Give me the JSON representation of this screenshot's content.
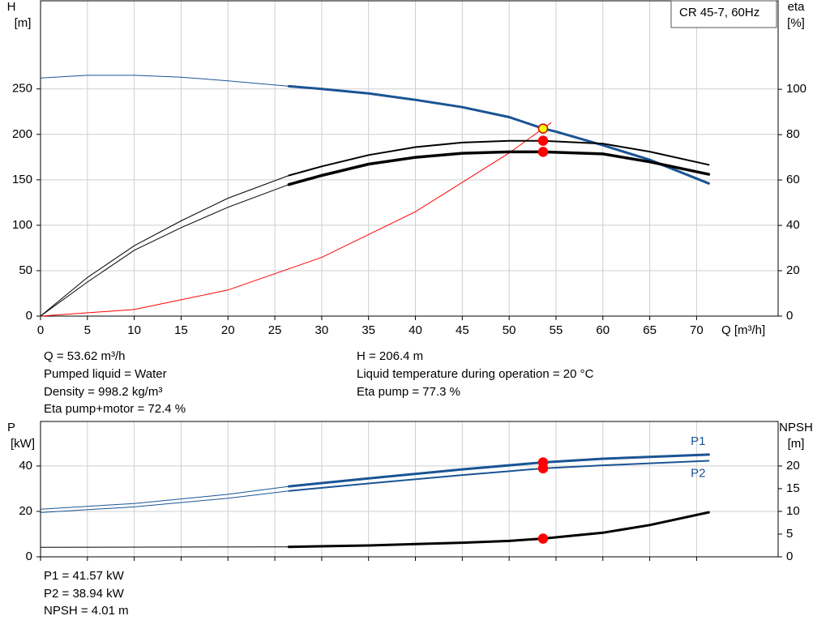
{
  "chart_data": [
    {
      "type": "line",
      "annotation": "CR 45-7, 60Hz",
      "x_label": "Q [m³/h]",
      "y_label": [
        "H",
        "[m]"
      ],
      "y2_label": [
        "eta",
        "[%]"
      ],
      "xlim": [
        0,
        78.7
      ],
      "xticks": [
        0,
        5,
        10,
        15,
        20,
        25,
        30,
        35,
        40,
        45,
        50,
        55,
        60,
        65,
        70
      ],
      "show_xtick_labels": true,
      "ylim": [
        0,
        347
      ],
      "yticks": [
        0,
        50,
        100,
        150,
        200,
        250
      ],
      "y2lim": [
        0,
        139
      ],
      "y2ticks": [
        0,
        20,
        40,
        60,
        80,
        100
      ],
      "grid": true,
      "thick_from": 26.5,
      "series": [
        {
          "color": "#1a5494",
          "line_width": 3,
          "x": [
            0,
            5,
            10,
            15,
            20,
            26.5,
            30,
            35,
            40,
            45,
            50,
            53.62,
            55,
            60,
            65,
            71.3
          ],
          "values": [
            262,
            265,
            265,
            263,
            259,
            253,
            250,
            245,
            238,
            230,
            219,
            206.4,
            203,
            188,
            172,
            146
          ]
        },
        {
          "color": "#ff0000",
          "style": "thin",
          "x": [
            0,
            10,
            20,
            30,
            40,
            50,
            54.5
          ],
          "values": [
            0,
            7.2,
            28.7,
            64.6,
            114.9,
            179.5,
            213
          ]
        },
        {
          "color": "#000000",
          "line_width": 2,
          "axis": "y2",
          "x": [
            0,
            5,
            10,
            15,
            20,
            26.5,
            30,
            35,
            40,
            45,
            50,
            53.62,
            60,
            65,
            71.3
          ],
          "values": [
            0,
            17,
            31,
            42,
            52,
            62,
            66,
            71,
            74.5,
            76.5,
            77.3,
            77.3,
            76,
            72.5,
            66.7
          ]
        },
        {
          "color": "#000000",
          "line_width": 3.5,
          "axis": "y2",
          "x": [
            0,
            5,
            10,
            15,
            20,
            26.5,
            30,
            35,
            40,
            45,
            50,
            53.62,
            60,
            65,
            71.3
          ],
          "values": [
            0,
            15,
            29,
            39,
            48,
            58,
            62,
            67,
            70,
            71.8,
            72.4,
            72.4,
            71.5,
            68,
            62.5
          ]
        }
      ],
      "points": [
        {
          "x": 53.62,
          "y": 77.3,
          "axis": "y2",
          "color": "#ff0000"
        },
        {
          "x": 53.62,
          "y": 72.4,
          "axis": "y2",
          "color": "#ff0000"
        },
        {
          "x": 53.62,
          "y": 206.4,
          "color": "#ffff00"
        }
      ]
    },
    {
      "type": "line",
      "y_label": [
        "P",
        "[kW]"
      ],
      "y2_label": [
        "NPSH",
        "[m]"
      ],
      "xlim": [
        0,
        78.7
      ],
      "xticks": [
        0,
        5,
        10,
        15,
        20,
        25,
        30,
        35,
        40,
        45,
        50,
        55,
        60,
        65,
        70
      ],
      "show_xtick_labels": false,
      "ylim": [
        0,
        59.6
      ],
      "yticks": [
        0,
        20,
        40
      ],
      "y2lim": [
        0,
        29.8
      ],
      "y2ticks": [
        0,
        5,
        10,
        15,
        20
      ],
      "grid": true,
      "thick_from": 26.5,
      "series": [
        {
          "name": "P1",
          "color": "#1a5494",
          "line_width": 3,
          "x": [
            0,
            10,
            20,
            26.5,
            35,
            45,
            53.62,
            60,
            71.3
          ],
          "values": [
            21,
            23.5,
            27.5,
            31,
            34.5,
            38.5,
            41.57,
            43.2,
            45
          ]
        },
        {
          "name": "P2",
          "color": "#1a5494",
          "line_width": 2,
          "x": [
            0,
            10,
            20,
            26.5,
            35,
            45,
            53.62,
            60,
            71.3
          ],
          "values": [
            19.5,
            22,
            25.8,
            29,
            32.3,
            36,
            38.94,
            40.3,
            42.3
          ]
        },
        {
          "color": "#000000",
          "line_width": 3,
          "axis": "y2",
          "x": [
            0,
            26.5,
            35,
            40,
            45,
            50,
            53.62,
            60,
            65,
            71.3
          ],
          "values": [
            2.1,
            2.2,
            2.5,
            2.8,
            3.1,
            3.5,
            4.01,
            5.3,
            7,
            9.8
          ]
        }
      ],
      "points": [
        {
          "x": 53.62,
          "y": 41.57,
          "color": "#ff0000"
        },
        {
          "x": 53.62,
          "y": 38.94,
          "color": "#ff0000"
        },
        {
          "x": 53.62,
          "y": 4.01,
          "axis": "y2",
          "color": "#ff0000"
        }
      ]
    }
  ],
  "operating_point": {
    "left": [
      "Q = 53.62 m³/h",
      "Pumped liquid = Water",
      "Density = 998.2 kg/m³",
      "Eta pump+motor = 72.4 %"
    ],
    "right": [
      "H = 206.4 m",
      "Liquid temperature during operation = 20 °C",
      "Eta pump = 77.3 %"
    ]
  },
  "power_results": [
    "P1 = 41.57 kW",
    "P2 = 38.94 kW",
    "NPSH = 4.01 m"
  ]
}
